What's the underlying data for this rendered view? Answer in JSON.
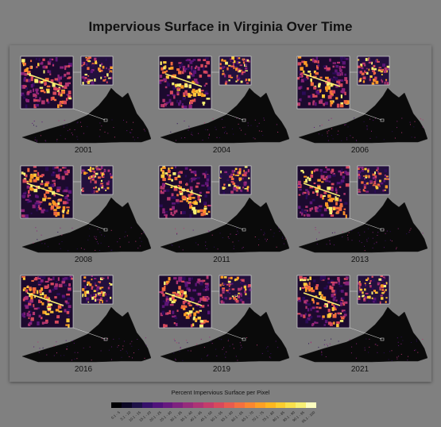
{
  "title": "Impervious Surface in Virginia Over Time",
  "years": [
    "2001",
    "2004",
    "2006",
    "2008",
    "2011",
    "2013",
    "2016",
    "2019",
    "2021"
  ],
  "legend": {
    "title": "Percent Impervious Surface per Pixel",
    "labels": [
      "0.1 - 5",
      "5.1 - 10",
      "10.1 - 15",
      "15.1 - 20",
      "20.1 - 25",
      "25.1 - 30",
      "30.1 - 35",
      "35.1 - 40",
      "40.1 - 45",
      "45.1 - 50",
      "50.1 - 55",
      "55.1 - 60",
      "60.1 - 65",
      "65.1 - 70",
      "70.1 - 75",
      "75.1 - 80",
      "80.1 - 85",
      "85.1 - 90",
      "90.1 - 95",
      "95.1 - 100"
    ],
    "colors": [
      "#000004",
      "#0b0724",
      "#1d1147",
      "#35106a",
      "#4f127b",
      "#66197f",
      "#7e227f",
      "#962c7b",
      "#ad3475",
      "#c43c6b",
      "#d8495d",
      "#e85b4f",
      "#f4703f",
      "#fa8730",
      "#fda024",
      "#feb71f",
      "#fccd2e",
      "#f9e04b",
      "#f7ef73",
      "#fcfdbf"
    ]
  }
}
